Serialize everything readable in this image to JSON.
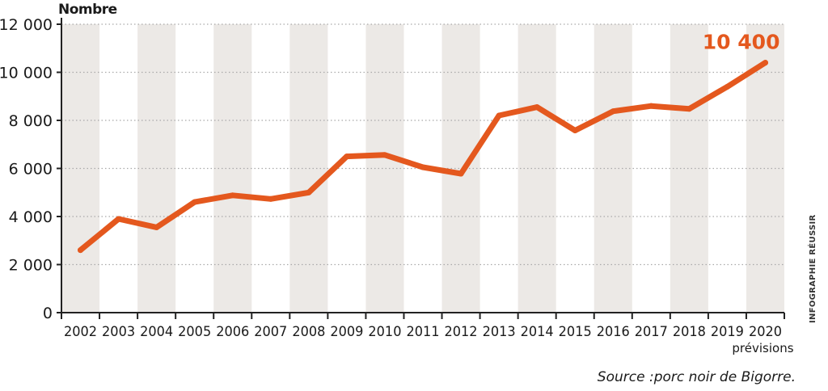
{
  "chart_data": {
    "type": "line",
    "ylabel": "Nombre",
    "x": [
      "2002",
      "2003",
      "2004",
      "2005",
      "2006",
      "2007",
      "2008",
      "2009",
      "2010",
      "2011",
      "2012",
      "2013",
      "2014",
      "2015",
      "2016",
      "2017",
      "2018",
      "2019",
      "2020"
    ],
    "x_sublabel": {
      "index": 18,
      "text": "prévisions"
    },
    "series": [
      {
        "values": [
          2600,
          3900,
          3550,
          4600,
          4880,
          4730,
          5000,
          6500,
          6560,
          6050,
          5780,
          8200,
          8550,
          7580,
          8380,
          8600,
          8480,
          9400,
          10400
        ]
      }
    ],
    "ylim": [
      0,
      12000
    ],
    "yticks": [
      0,
      2000,
      4000,
      6000,
      8000,
      10000,
      12000
    ],
    "ytick_labels": [
      "0",
      "2 000",
      "4 000",
      "6 000",
      "8 000",
      "10 000",
      "12 000"
    ],
    "annotation": {
      "index": 18,
      "text": "10 400"
    },
    "grid": true,
    "colors": {
      "line": "#e4581e",
      "stripe": "#ece9e6",
      "grid": "#a9a9a9",
      "axis": "#222222",
      "annotation": "#e4581e"
    }
  },
  "source": "Source :porc noir de Bigorre.",
  "credit": "INFOGRAPHIE RÉUSSIR"
}
